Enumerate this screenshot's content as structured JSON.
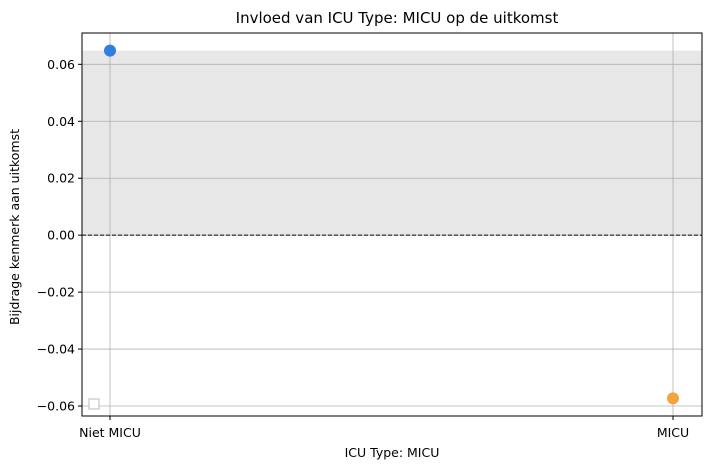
{
  "chart_data": {
    "type": "scatter",
    "title": "Invloed van ICU Type: MICU op de uitkomst",
    "xlabel": "ICU Type: MICU",
    "ylabel": "Bijdrage kenmerk aan uitkomst",
    "categories": [
      "Niet MICU",
      "MICU"
    ],
    "ylim": [
      -0.0635,
      0.071
    ],
    "yticks": [
      -0.06,
      -0.04,
      -0.02,
      0.0,
      0.02,
      0.04,
      0.06
    ],
    "ytick_labels": [
      "−0.06",
      "−0.04",
      "−0.02",
      "0.00",
      "0.02",
      "0.04",
      "0.06"
    ],
    "grid": true,
    "legend": "lower-left",
    "reference_line": 0.0,
    "shaded_band": [
      0.0,
      0.0648
    ],
    "points": [
      {
        "category": "Niet MICU",
        "value": 0.0648,
        "color": "#2f7fe0"
      },
      {
        "category": "MICU",
        "value": -0.0573,
        "color": "#f5a33b"
      }
    ]
  },
  "colors": {
    "band": "#e7e7e7",
    "grid": "#b0b0b0",
    "reference": "#222222"
  }
}
